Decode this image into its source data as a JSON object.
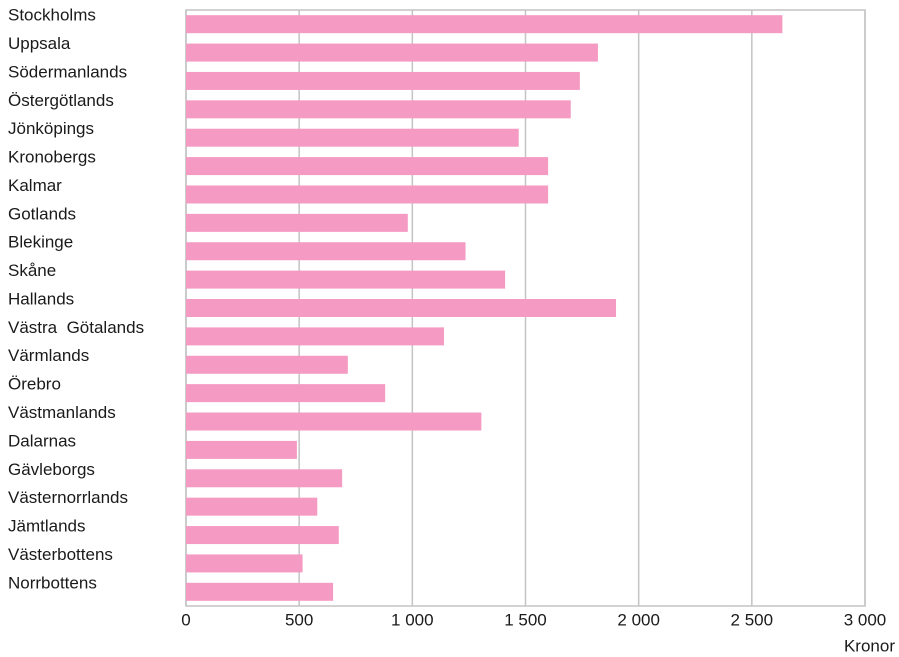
{
  "chart_data": {
    "type": "bar",
    "orientation": "horizontal",
    "categories": [
      "Stockholms",
      "Uppsala",
      "Södermanlands",
      "Östergötlands",
      "Jönköpings",
      "Kronobergs",
      "Kalmar",
      "Gotlands",
      "Blekinge",
      "Skåne",
      "Hallands",
      "Västra  Götalands",
      "Värmlands",
      "Örebro",
      "Västmanlands",
      "Dalarnas",
      "Gävleborgs",
      "Västernorrlands",
      "Jämtlands",
      "Västerbottens",
      "Norrbottens"
    ],
    "values": [
      2635,
      1820,
      1740,
      1700,
      1470,
      1600,
      1600,
      980,
      1235,
      1410,
      1900,
      1140,
      715,
      880,
      1305,
      490,
      690,
      580,
      675,
      515,
      650
    ],
    "color": "#f59ac3",
    "x_label": "Kronor",
    "xlim": [
      0,
      3000
    ],
    "xticks": [
      0,
      500,
      {
        "value": 1000,
        "label": "1 000"
      },
      {
        "value": 1500,
        "label": "1 500"
      },
      {
        "value": 2000,
        "label": "2 000"
      },
      {
        "value": 2500,
        "label": "2 500"
      },
      {
        "value": 3000,
        "label": "3 000"
      }
    ],
    "grid": true
  }
}
